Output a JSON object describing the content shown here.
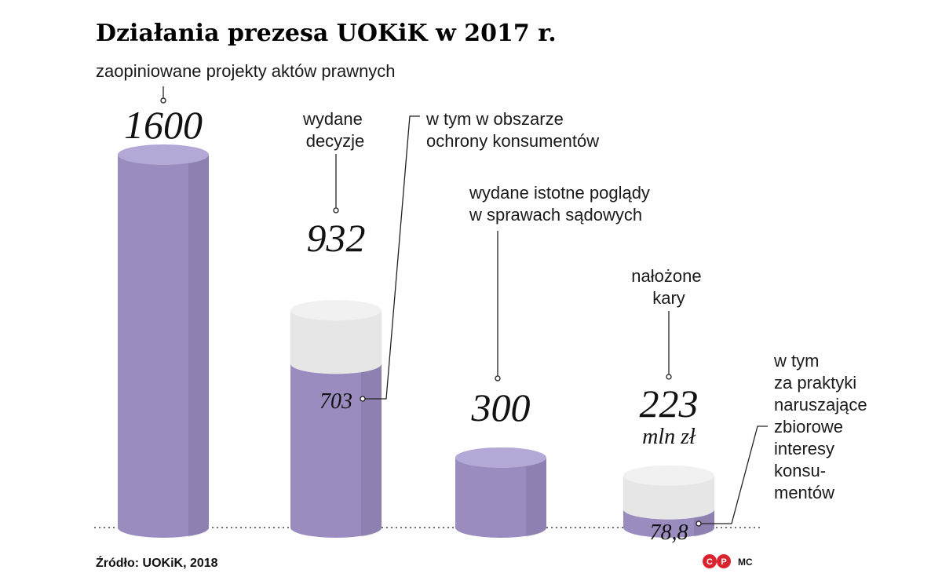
{
  "title": "Działania prezesa UOKiK w 2017 r.",
  "source": "Źródło: UOKiK, 2018",
  "author": "MC",
  "logo": "CP",
  "colors": {
    "purple_front": "#9b8cc0",
    "purple_top": "#b4a8d6",
    "grey_front": "#e6e6e6",
    "grey_top": "#f1f1f1"
  },
  "chart_data": {
    "type": "bar",
    "title": "Działania prezesa UOKiK w 2017 r.",
    "bars": [
      {
        "category_lines": [
          "zaopiniowane projekty aktów prawnych"
        ],
        "value": 1600,
        "value_label": "1600"
      },
      {
        "category_lines": [
          "wydane",
          "decyzje"
        ],
        "value": 932,
        "value_label": "932",
        "sub_value": 703,
        "sub_value_label": "703",
        "sub_label_lines": [
          "w tym w obszarze",
          "ochrony konsumentów"
        ]
      },
      {
        "category_lines": [
          "wydane istotne poglądy",
          "w sprawach sądowych"
        ],
        "value": 300,
        "value_label": "300"
      },
      {
        "category_lines": [
          "nałożone",
          "kary"
        ],
        "value": 223,
        "value_label": "223",
        "unit": "mln zł",
        "sub_value": 78.8,
        "sub_value_label": "78,8",
        "sub_label_lines": [
          "w tym",
          "za praktyki",
          "naruszające",
          "zbiorowe",
          "interesy",
          "konsu-",
          "mentów"
        ]
      }
    ]
  }
}
